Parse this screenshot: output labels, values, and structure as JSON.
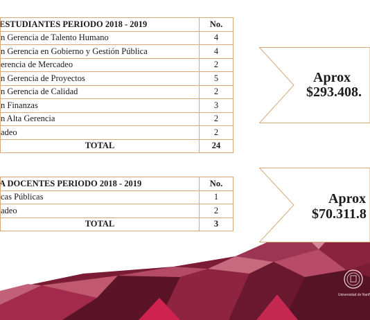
{
  "table_students": {
    "header": {
      "title": "ESTUDIANTES PERIODO 2018 - 2019",
      "count": "No."
    },
    "rows": [
      {
        "label": "n Gerencia de Talento Humano",
        "count": "4"
      },
      {
        "label": "n Gerencia en Gobierno y Gestión Pública",
        "count": "4"
      },
      {
        "label": "erencia de Mercadeo",
        "count": "2"
      },
      {
        "label": "n Gerencia de Proyectos",
        "count": "5"
      },
      {
        "label": "n Gerencia de Calidad",
        "count": "2"
      },
      {
        "label": "n Finanzas",
        "count": "3"
      },
      {
        "label": "n Alta Gerencia",
        "count": "2"
      },
      {
        "label": "adeo",
        "count": "2"
      }
    ],
    "total": {
      "label": "TOTAL",
      "count": "24"
    }
  },
  "table_teachers": {
    "header": {
      "title": "A DOCENTES PERIODO 2018 - 2019",
      "count": "No."
    },
    "rows": [
      {
        "label": "cas Públicas",
        "count": "1"
      },
      {
        "label": "adeo",
        "count": "2"
      }
    ],
    "total": {
      "label": "TOTAL",
      "count": "3"
    }
  },
  "banner_students": {
    "line1": "Aprox",
    "line2": "$293.408."
  },
  "banner_teachers": {
    "line1": "Aprox",
    "line2": "$70.311.8"
  },
  "logo": {
    "text": "Universidad de Nariño"
  },
  "colors": {
    "border": "#d9a877",
    "maroon_dark": "#5e1526",
    "maroon": "#7d1e37",
    "crimson": "#a6244a",
    "rose": "#b8566f"
  }
}
